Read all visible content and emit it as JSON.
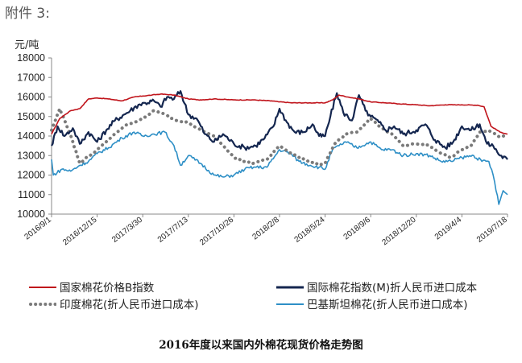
{
  "page_header": "附件 3:",
  "chart_data": {
    "type": "line",
    "title": "2016年度以来国内外棉花现货价格走势图",
    "ylabel": "元/吨",
    "xlabel": "",
    "ylim": [
      10000,
      18000
    ],
    "yticks": [
      10000,
      11000,
      12000,
      13000,
      14000,
      15000,
      16000,
      17000,
      18000
    ],
    "xlim": [
      "2016-09-01",
      "2019-07-18"
    ],
    "xticks": [
      "2016/9/1",
      "2016/12/15",
      "2017/3/30",
      "2017/7/13",
      "2017/10/26",
      "2018/2/8",
      "2018/5/24",
      "2018/9/6",
      "2018/12/20",
      "2019/4/4",
      "2019/7/18"
    ],
    "grid": false,
    "legend_position": "bottom",
    "series": [
      {
        "name": "国家棉花价格B指数",
        "color": "#c0141b",
        "style": "solid",
        "x": [
          "2016-09-01",
          "2016-09-20",
          "2016-10-15",
          "2016-11-05",
          "2016-11-25",
          "2016-12-15",
          "2017-01-10",
          "2017-02-10",
          "2017-03-10",
          "2017-03-30",
          "2017-04-20",
          "2017-05-10",
          "2017-06-10",
          "2017-07-13",
          "2017-08-10",
          "2017-09-10",
          "2017-10-26",
          "2017-12-10",
          "2018-01-20",
          "2018-02-08",
          "2018-03-10",
          "2018-04-20",
          "2018-05-10",
          "2018-05-24",
          "2018-06-10",
          "2018-06-25",
          "2018-07-15",
          "2018-08-10",
          "2018-09-06",
          "2018-10-10",
          "2018-11-10",
          "2018-12-20",
          "2019-01-20",
          "2019-02-25",
          "2019-04-04",
          "2019-05-10",
          "2019-05-25",
          "2019-06-10",
          "2019-07-01",
          "2019-07-18"
        ],
        "values": [
          14100,
          14900,
          15300,
          15400,
          15900,
          15950,
          15900,
          15800,
          16000,
          16050,
          16100,
          16150,
          16100,
          15900,
          15850,
          15900,
          15850,
          15850,
          15800,
          15750,
          15700,
          15700,
          15700,
          15700,
          15850,
          16100,
          16000,
          15900,
          15750,
          15700,
          15650,
          15600,
          15550,
          15600,
          15600,
          15580,
          15500,
          14500,
          14200,
          14100
        ]
      },
      {
        "name": "国际棉花指数(M)折人民币进口成本",
        "color": "#14264f",
        "style": "solid",
        "x": [
          "2016-09-01",
          "2016-09-15",
          "2016-10-01",
          "2016-10-20",
          "2016-11-05",
          "2016-11-25",
          "2016-12-15",
          "2017-01-05",
          "2017-01-25",
          "2017-02-15",
          "2017-03-01",
          "2017-03-20",
          "2017-04-05",
          "2017-04-25",
          "2017-05-10",
          "2017-05-25",
          "2017-06-10",
          "2017-06-25",
          "2017-07-13",
          "2017-08-01",
          "2017-08-20",
          "2017-09-10",
          "2017-10-01",
          "2017-10-26",
          "2017-11-20",
          "2017-12-15",
          "2018-01-05",
          "2018-01-25",
          "2018-02-08",
          "2018-02-25",
          "2018-03-15",
          "2018-04-05",
          "2018-04-25",
          "2018-05-10",
          "2018-05-24",
          "2018-06-05",
          "2018-06-20",
          "2018-07-05",
          "2018-07-25",
          "2018-08-10",
          "2018-08-25",
          "2018-09-06",
          "2018-09-25",
          "2018-10-10",
          "2018-10-30",
          "2018-11-20",
          "2018-12-20",
          "2019-01-10",
          "2019-02-01",
          "2019-02-25",
          "2019-03-15",
          "2019-04-04",
          "2019-04-25",
          "2019-05-15",
          "2019-06-01",
          "2019-06-15",
          "2019-07-01",
          "2019-07-18"
        ],
        "values": [
          13500,
          14500,
          14000,
          14400,
          13600,
          14200,
          13700,
          14300,
          14800,
          15100,
          15300,
          15600,
          15700,
          15800,
          15500,
          16000,
          15900,
          16300,
          15100,
          14900,
          14100,
          13700,
          14100,
          13600,
          13400,
          13500,
          13900,
          14500,
          15400,
          14700,
          14200,
          14200,
          14600,
          14000,
          14000,
          15000,
          16200,
          15200,
          14800,
          16100,
          15300,
          15000,
          14700,
          14300,
          14500,
          14100,
          14300,
          14600,
          13800,
          13400,
          13700,
          14500,
          14300,
          14600,
          13600,
          13500,
          13000,
          12800
        ]
      },
      {
        "name": "印度棉花(折人民币进口成本)",
        "color": "#7a7a7a",
        "style": "dotted",
        "x": [
          "2016-09-01",
          "2016-09-20",
          "2016-10-05",
          "2016-10-20",
          "2016-11-05",
          "2016-11-20",
          "2016-12-05",
          "2016-12-15",
          "2017-01-15",
          "2017-02-15",
          "2017-03-10",
          "2017-03-30",
          "2017-04-25",
          "2017-05-20",
          "2017-06-15",
          "2017-07-13",
          "2017-08-10",
          "2017-09-10",
          "2017-10-10",
          "2017-10-26",
          "2017-11-20",
          "2017-12-10",
          "2018-01-10",
          "2018-02-08",
          "2018-03-01",
          "2018-03-25",
          "2018-04-20",
          "2018-05-10",
          "2018-05-24",
          "2018-06-15",
          "2018-07-10",
          "2018-08-05",
          "2018-09-06",
          "2018-10-01",
          "2018-10-25",
          "2018-11-20",
          "2018-12-20",
          "2019-01-20",
          "2019-02-15",
          "2019-03-10",
          "2019-04-04",
          "2019-04-25",
          "2019-05-15",
          "2019-06-05",
          "2019-06-25",
          "2019-07-18"
        ],
        "values": [
          14300,
          15400,
          14600,
          13700,
          12600,
          12900,
          13100,
          13300,
          13900,
          14500,
          14700,
          14900,
          15300,
          15100,
          14800,
          14700,
          14300,
          14000,
          13300,
          12900,
          12700,
          12600,
          12800,
          13500,
          13200,
          12900,
          12700,
          12500,
          12600,
          13600,
          14100,
          14200,
          14900,
          14400,
          14100,
          13500,
          13600,
          13500,
          13100,
          12900,
          13300,
          13500,
          14200,
          14300,
          14000,
          14000
        ]
      },
      {
        "name": "巴基斯坦棉花(折人民币进口成本)",
        "color": "#2e8fc6",
        "style": "solid",
        "x": [
          "2016-09-01",
          "2016-09-05",
          "2016-09-25",
          "2016-10-15",
          "2016-11-05",
          "2016-11-25",
          "2016-12-15",
          "2017-01-10",
          "2017-02-10",
          "2017-03-10",
          "2017-03-30",
          "2017-04-25",
          "2017-05-20",
          "2017-06-10",
          "2017-06-25",
          "2017-07-13",
          "2017-08-10",
          "2017-09-10",
          "2017-10-01",
          "2017-10-26",
          "2017-11-20",
          "2017-12-10",
          "2018-01-10",
          "2018-02-08",
          "2018-03-05",
          "2018-03-25",
          "2018-04-20",
          "2018-05-10",
          "2018-05-24",
          "2018-06-10",
          "2018-06-25",
          "2018-07-10",
          "2018-08-05",
          "2018-09-06",
          "2018-10-01",
          "2018-10-25",
          "2018-11-20",
          "2018-12-20",
          "2019-01-20",
          "2019-02-15",
          "2019-03-10",
          "2019-04-04",
          "2019-05-01",
          "2019-05-20",
          "2019-06-05",
          "2019-06-15",
          "2019-06-28",
          "2019-07-08",
          "2019-07-18"
        ],
        "values": [
          12800,
          12000,
          12300,
          12200,
          12500,
          12700,
          13100,
          13400,
          13900,
          14200,
          14000,
          14100,
          14200,
          13500,
          12500,
          13000,
          12600,
          12000,
          11900,
          12000,
          12300,
          12400,
          12400,
          13300,
          13100,
          12700,
          12500,
          12400,
          12300,
          13300,
          13500,
          13700,
          13400,
          13700,
          13300,
          13300,
          13000,
          13100,
          13000,
          12700,
          12700,
          12900,
          13000,
          12700,
          12700,
          12000,
          10500,
          11200,
          11000
        ]
      }
    ]
  }
}
